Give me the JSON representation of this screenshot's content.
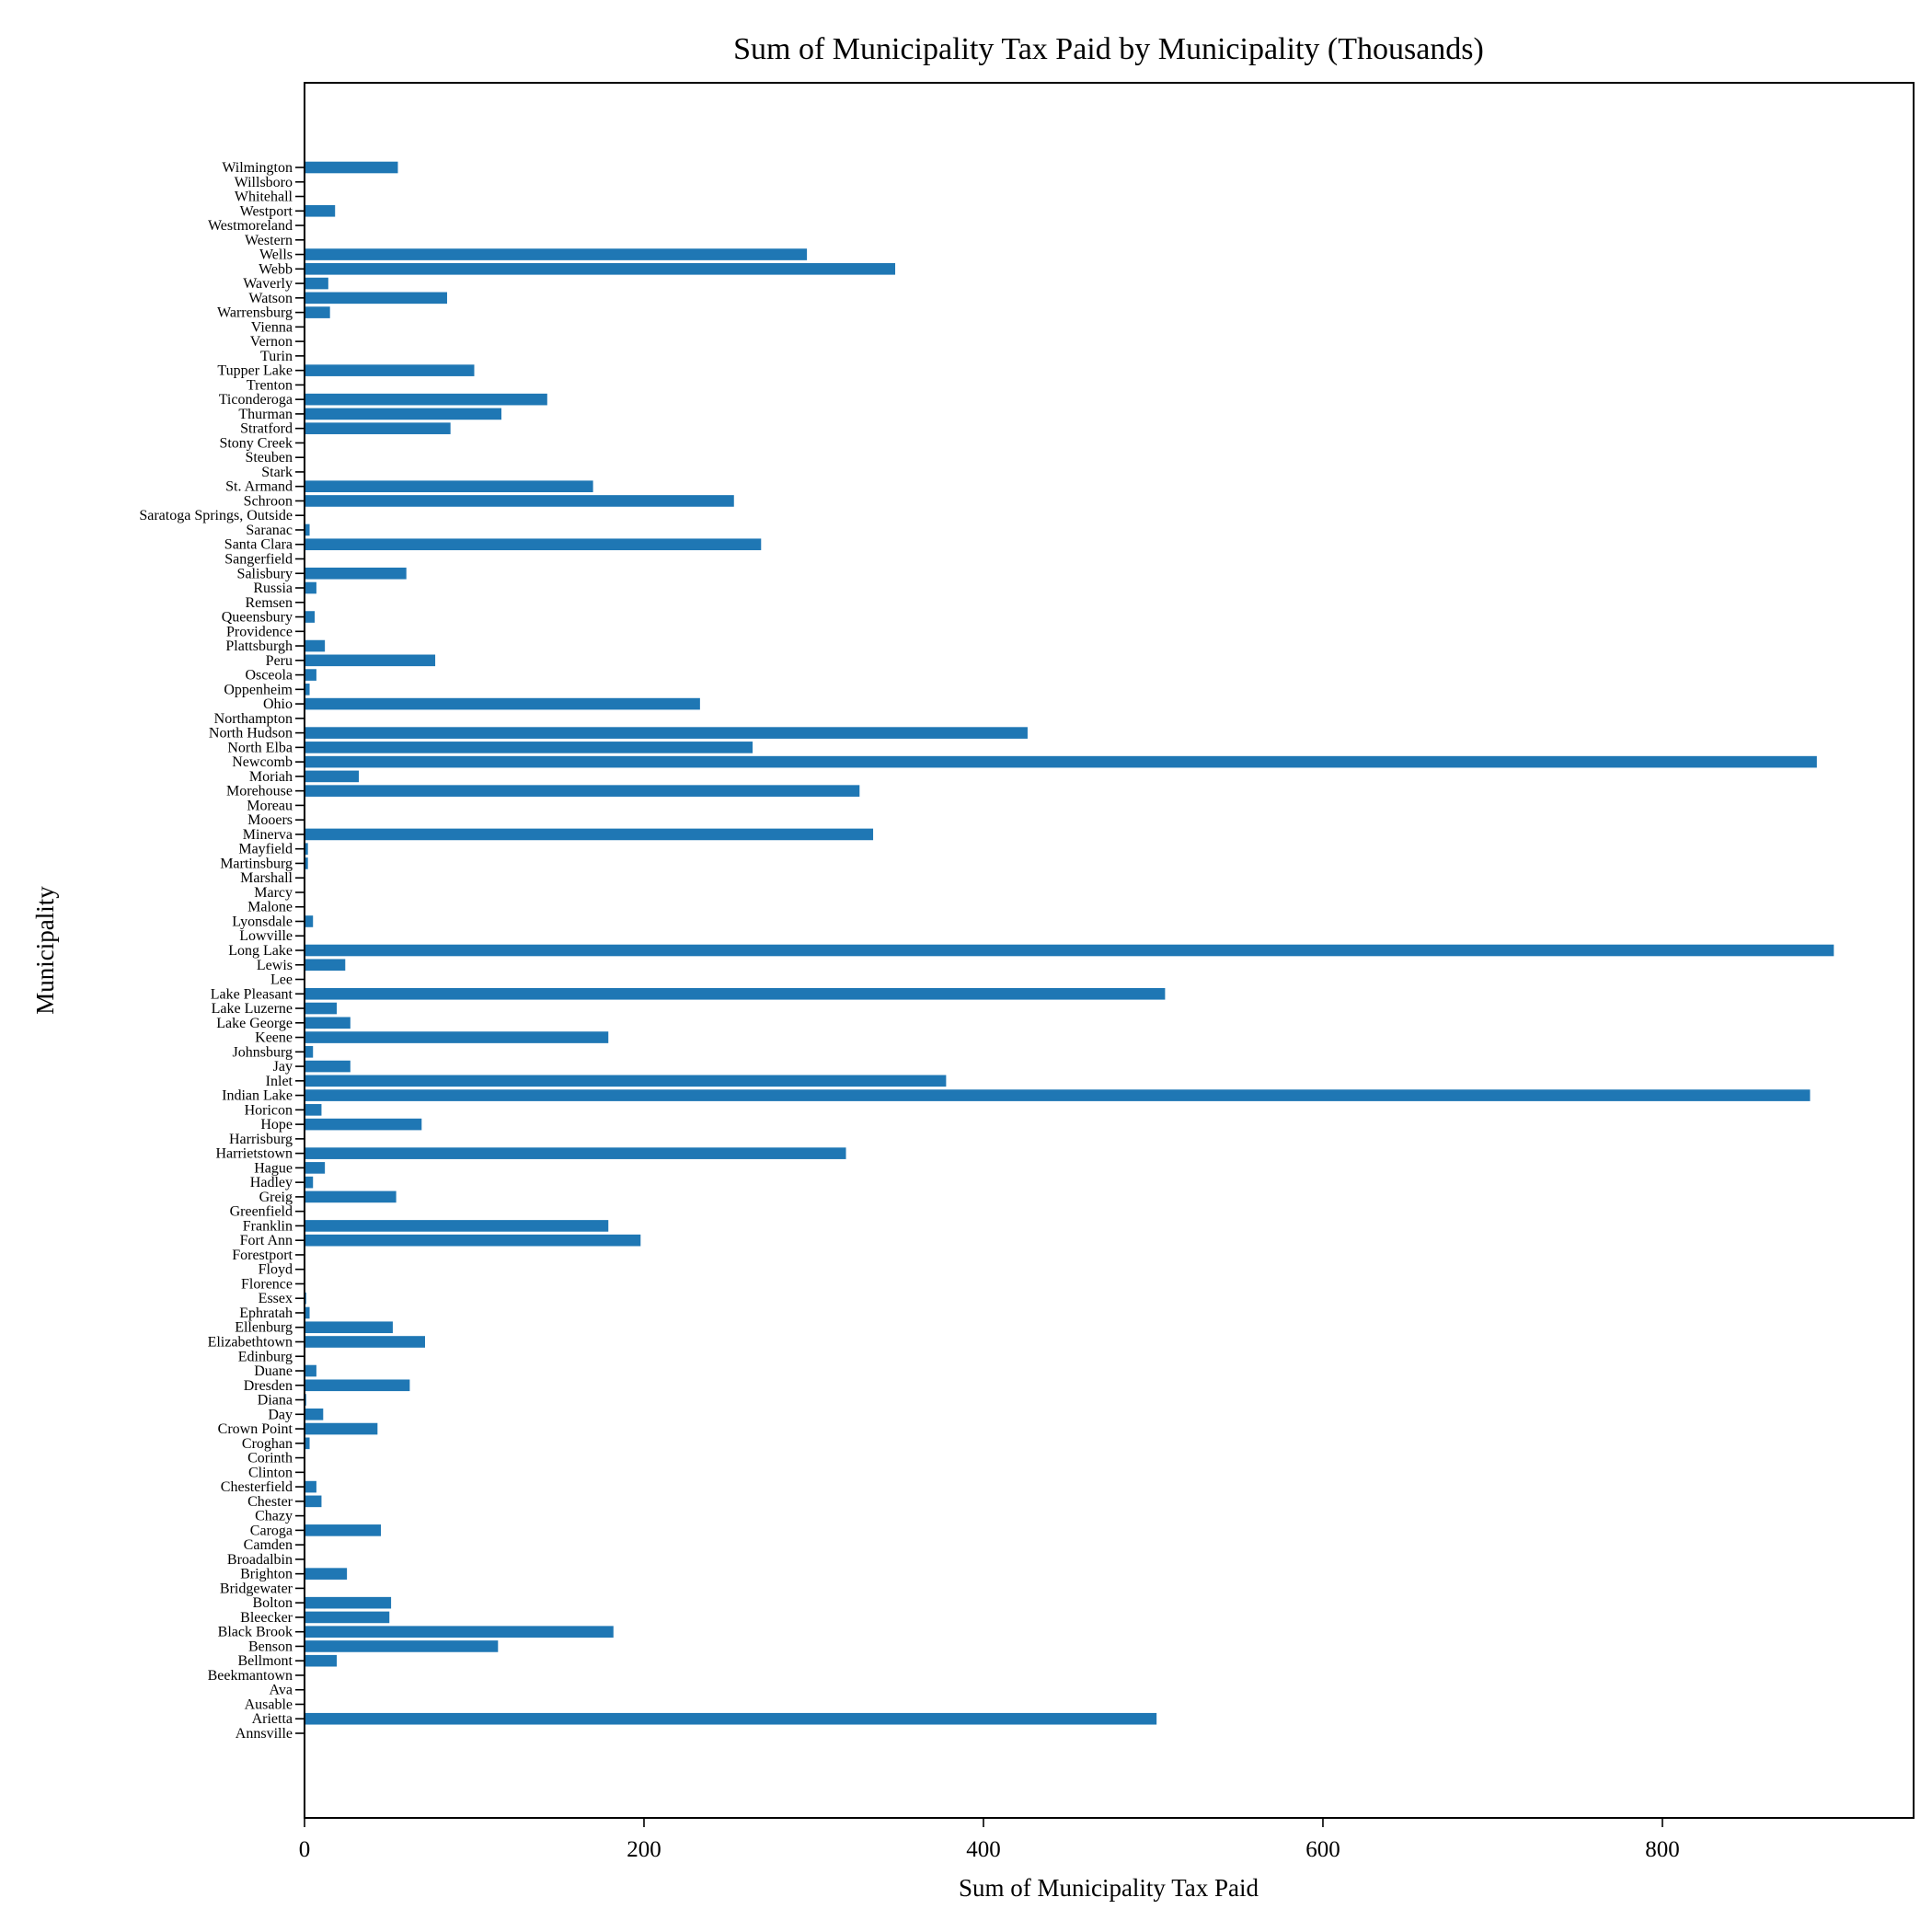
{
  "chart_data": {
    "type": "bar",
    "orientation": "horizontal",
    "title": "Sum of Municipality Tax Paid by Municipality (Thousands)",
    "xlabel": "Sum of Municipality Tax Paid",
    "ylabel": "Municipality",
    "xlim": [
      0,
      948
    ],
    "xticks": [
      0,
      200,
      400,
      600,
      800
    ],
    "grid": false,
    "bar_color": "#1f77b4",
    "categories": [
      "Annsville",
      "Arietta",
      "Ausable",
      "Ava",
      "Beekmantown",
      "Bellmont",
      "Benson",
      "Black Brook",
      "Bleecker",
      "Bolton",
      "Bridgewater",
      "Brighton",
      "Broadalbin",
      "Camden",
      "Caroga",
      "Chazy",
      "Chester",
      "Chesterfield",
      "Clinton",
      "Corinth",
      "Croghan",
      "Crown Point",
      "Day",
      "Diana",
      "Dresden",
      "Duane",
      "Edinburg",
      "Elizabethtown",
      "Ellenburg",
      "Ephratah",
      "Essex",
      "Florence",
      "Floyd",
      "Forestport",
      "Fort Ann",
      "Franklin",
      "Greenfield",
      "Greig",
      "Hadley",
      "Hague",
      "Harrietstown",
      "Harrisburg",
      "Hope",
      "Horicon",
      "Indian Lake",
      "Inlet",
      "Jay",
      "Johnsburg",
      "Keene",
      "Lake George",
      "Lake Luzerne",
      "Lake Pleasant",
      "Lee",
      "Lewis",
      "Long Lake",
      "Lowville",
      "Lyonsdale",
      "Malone",
      "Marcy",
      "Marshall",
      "Martinsburg",
      "Mayfield",
      "Minerva",
      "Mooers",
      "Moreau",
      "Morehouse",
      "Moriah",
      "Newcomb",
      "North Elba",
      "North Hudson",
      "Northampton",
      "Ohio",
      "Oppenheim",
      "Osceola",
      "Peru",
      "Plattsburgh",
      "Providence",
      "Queensbury",
      "Remsen",
      "Russia",
      "Salisbury",
      "Sangerfield",
      "Santa Clara",
      "Saranac",
      "Saratoga Springs, Outside",
      "Schroon",
      "St. Armand",
      "Stark",
      "Steuben",
      "Stony Creek",
      "Stratford",
      "Thurman",
      "Ticonderoga",
      "Trenton",
      "Tupper Lake",
      "Turin",
      "Vernon",
      "Vienna",
      "Warrensburg",
      "Watson",
      "Waverly",
      "Webb",
      "Wells",
      "Western",
      "Westmoreland",
      "Westport",
      "Whitehall",
      "Willsboro",
      "Wilmington"
    ],
    "values": [
      0,
      502,
      0,
      0,
      0,
      19,
      114,
      182,
      50,
      51,
      0,
      25,
      0,
      0,
      45,
      0,
      10,
      7,
      0,
      0,
      3,
      43,
      11,
      1,
      62,
      7,
      0,
      71,
      52,
      3,
      1,
      0,
      0,
      0,
      198,
      179,
      0,
      54,
      5,
      12,
      319,
      0,
      69,
      10,
      887,
      378,
      27,
      5,
      179,
      27,
      19,
      507,
      0,
      24,
      901,
      0,
      5,
      0,
      0,
      0,
      2,
      2,
      335,
      0,
      0,
      327,
      32,
      891,
      264,
      426,
      0,
      233,
      3,
      7,
      77,
      12,
      0,
      6,
      0,
      7,
      60,
      0,
      269,
      3,
      0,
      253,
      170,
      0,
      0,
      0,
      86,
      116,
      143,
      0,
      100,
      0,
      0,
      0,
      15,
      84,
      14,
      348,
      296,
      0,
      0,
      18,
      0,
      0,
      55
    ]
  }
}
